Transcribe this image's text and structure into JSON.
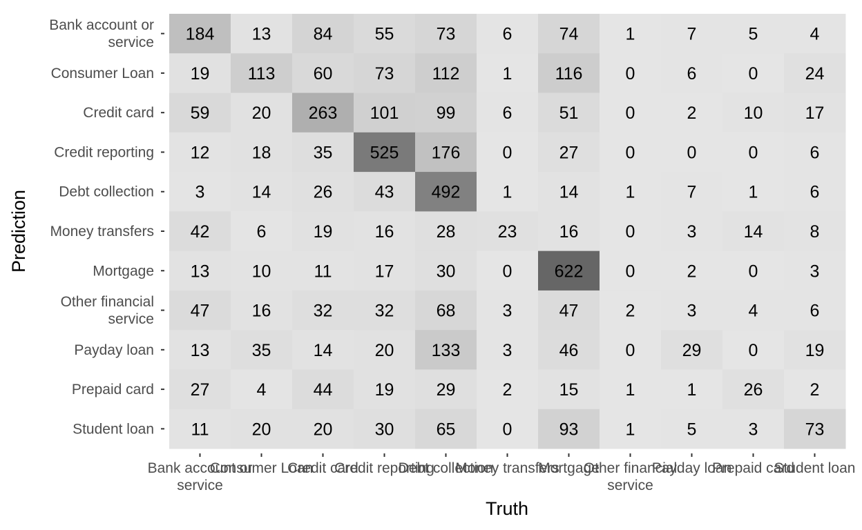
{
  "chart_data": {
    "type": "heatmap",
    "title": "",
    "xlabel": "Truth",
    "ylabel": "Prediction",
    "x_categories": [
      "Bank account or service",
      "Consumer Loan",
      "Credit card",
      "Credit reporting",
      "Debt collection",
      "Money transfers",
      "Mortgage",
      "Other financial service",
      "Payday loan",
      "Prepaid card",
      "Student loan"
    ],
    "y_categories": [
      "Bank account or service",
      "Consumer Loan",
      "Credit card",
      "Credit reporting",
      "Debt collection",
      "Money transfers",
      "Mortgage",
      "Other financial service",
      "Payday loan",
      "Prepaid card",
      "Student loan"
    ],
    "values": [
      [
        184,
        13,
        84,
        55,
        73,
        6,
        74,
        1,
        7,
        5,
        4
      ],
      [
        19,
        113,
        60,
        73,
        112,
        1,
        116,
        0,
        6,
        0,
        24
      ],
      [
        59,
        20,
        263,
        101,
        99,
        6,
        51,
        0,
        2,
        10,
        17
      ],
      [
        12,
        18,
        35,
        525,
        176,
        0,
        27,
        0,
        0,
        0,
        6
      ],
      [
        3,
        14,
        26,
        43,
        492,
        1,
        14,
        1,
        7,
        1,
        6
      ],
      [
        42,
        6,
        19,
        16,
        28,
        23,
        16,
        0,
        3,
        14,
        8
      ],
      [
        13,
        10,
        11,
        17,
        30,
        0,
        622,
        0,
        2,
        0,
        3
      ],
      [
        47,
        16,
        32,
        32,
        68,
        3,
        47,
        2,
        3,
        4,
        6
      ],
      [
        13,
        35,
        14,
        20,
        133,
        3,
        46,
        0,
        29,
        0,
        19
      ],
      [
        27,
        4,
        44,
        19,
        29,
        2,
        15,
        1,
        1,
        26,
        2
      ],
      [
        11,
        20,
        20,
        30,
        65,
        0,
        93,
        1,
        5,
        3,
        73
      ]
    ],
    "color_scale": {
      "low": "#e5e5e5",
      "high": "#666666",
      "min": 0,
      "max": 622
    },
    "legend": "none",
    "grid": false
  }
}
